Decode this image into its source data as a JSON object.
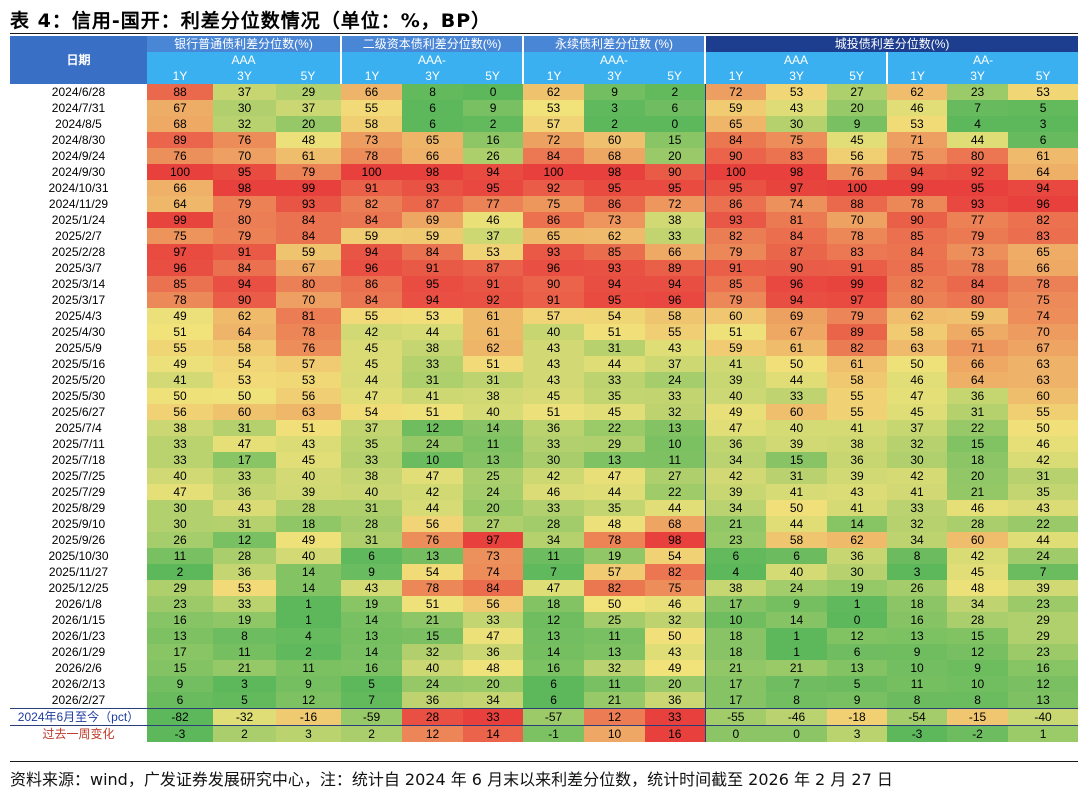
{
  "title": "表 4：信用-国开：利差分位数情况（单位：%，BP）",
  "header": {
    "date_label": "日期",
    "groups": [
      {
        "label": "银行普通债利差分位数(%)",
        "sub": [
          {
            "label": "AAA",
            "tenors": [
              "1Y",
              "3Y",
              "5Y"
            ]
          }
        ]
      },
      {
        "label": "二级资本债利差分位数(%)",
        "sub": [
          {
            "label": "AAA-",
            "tenors": [
              "1Y",
              "3Y",
              "5Y"
            ]
          }
        ]
      },
      {
        "label": "永续债利差分位数 (%)",
        "sub": [
          {
            "label": "AAA-",
            "tenors": [
              "1Y",
              "3Y",
              "5Y"
            ]
          }
        ]
      },
      {
        "label": "城投债利差分位数(%)",
        "sub": [
          {
            "label": "AAA",
            "tenors": [
              "1Y",
              "3Y",
              "5Y"
            ]
          },
          {
            "label": "AA-",
            "tenors": [
              "1Y",
              "3Y",
              "5Y"
            ]
          }
        ]
      }
    ]
  },
  "rows": [
    {
      "date": "2024/6/28",
      "v": [
        88,
        37,
        29,
        66,
        8,
        0,
        62,
        9,
        2,
        72,
        53,
        27,
        62,
        23,
        53
      ]
    },
    {
      "date": "2024/7/31",
      "v": [
        67,
        30,
        37,
        55,
        6,
        9,
        53,
        3,
        6,
        59,
        43,
        20,
        46,
        7,
        5
      ]
    },
    {
      "date": "2024/8/5",
      "v": [
        68,
        32,
        20,
        58,
        6,
        2,
        57,
        2,
        0,
        65,
        30,
        9,
        53,
        4,
        3
      ]
    },
    {
      "date": "2024/8/30",
      "v": [
        89,
        76,
        48,
        73,
        65,
        16,
        72,
        60,
        15,
        84,
        75,
        45,
        71,
        44,
        6
      ]
    },
    {
      "date": "2024/9/24",
      "v": [
        76,
        70,
        61,
        78,
        66,
        26,
        84,
        68,
        20,
        90,
        83,
        56,
        75,
        80,
        61
      ]
    },
    {
      "date": "2024/9/30",
      "v": [
        100,
        95,
        79,
        100,
        98,
        94,
        100,
        98,
        90,
        100,
        98,
        76,
        94,
        92,
        64
      ]
    },
    {
      "date": "2024/10/31",
      "v": [
        66,
        98,
        99,
        91,
        93,
        95,
        92,
        95,
        95,
        95,
        97,
        100,
        99,
        95,
        94
      ]
    },
    {
      "date": "2024/11/29",
      "v": [
        64,
        79,
        93,
        82,
        87,
        77,
        75,
        86,
        72,
        86,
        74,
        88,
        78,
        93,
        96
      ]
    },
    {
      "date": "2025/1/24",
      "v": [
        99,
        80,
        84,
        84,
        69,
        46,
        86,
        73,
        38,
        93,
        81,
        70,
        90,
        77,
        82
      ]
    },
    {
      "date": "2025/2/7",
      "v": [
        75,
        79,
        84,
        59,
        59,
        37,
        65,
        62,
        33,
        82,
        84,
        78,
        85,
        79,
        83
      ]
    },
    {
      "date": "2025/2/28",
      "v": [
        97,
        91,
        59,
        94,
        84,
        53,
        93,
        85,
        66,
        79,
        87,
        83,
        84,
        73,
        65
      ]
    },
    {
      "date": "2025/3/7",
      "v": [
        96,
        84,
        67,
        96,
        91,
        87,
        96,
        93,
        89,
        91,
        90,
        91,
        85,
        78,
        66
      ]
    },
    {
      "date": "2025/3/14",
      "v": [
        85,
        94,
        80,
        86,
        95,
        91,
        90,
        94,
        94,
        85,
        96,
        99,
        82,
        84,
        78
      ]
    },
    {
      "date": "2025/3/17",
      "v": [
        78,
        90,
        70,
        84,
        94,
        92,
        91,
        95,
        96,
        79,
        94,
        97,
        80,
        80,
        75
      ]
    },
    {
      "date": "2025/4/3",
      "v": [
        49,
        62,
        81,
        55,
        53,
        61,
        57,
        54,
        58,
        60,
        69,
        79,
        62,
        59,
        74
      ]
    },
    {
      "date": "2025/4/30",
      "v": [
        51,
        64,
        78,
        42,
        44,
        61,
        40,
        51,
        55,
        51,
        67,
        89,
        58,
        65,
        70
      ]
    },
    {
      "date": "2025/5/9",
      "v": [
        55,
        58,
        76,
        45,
        38,
        62,
        43,
        31,
        43,
        59,
        61,
        82,
        63,
        71,
        67
      ]
    },
    {
      "date": "2025/5/16",
      "v": [
        49,
        54,
        57,
        45,
        33,
        51,
        43,
        44,
        37,
        41,
        50,
        61,
        50,
        66,
        63
      ]
    },
    {
      "date": "2025/5/20",
      "v": [
        41,
        53,
        53,
        44,
        31,
        31,
        43,
        33,
        24,
        39,
        44,
        58,
        46,
        64,
        63
      ]
    },
    {
      "date": "2025/5/30",
      "v": [
        50,
        50,
        56,
        47,
        41,
        38,
        45,
        35,
        33,
        40,
        33,
        55,
        47,
        36,
        60
      ]
    },
    {
      "date": "2025/6/27",
      "v": [
        56,
        60,
        63,
        54,
        51,
        40,
        51,
        45,
        32,
        49,
        60,
        55,
        45,
        31,
        55
      ]
    },
    {
      "date": "2025/7/4",
      "v": [
        38,
        31,
        51,
        37,
        12,
        14,
        36,
        22,
        13,
        47,
        40,
        41,
        37,
        22,
        50
      ]
    },
    {
      "date": "2025/7/11",
      "v": [
        33,
        47,
        43,
        35,
        24,
        11,
        33,
        29,
        10,
        36,
        39,
        38,
        32,
        15,
        46
      ]
    },
    {
      "date": "2025/7/18",
      "v": [
        33,
        17,
        45,
        33,
        10,
        13,
        30,
        13,
        11,
        34,
        15,
        36,
        30,
        18,
        42
      ]
    },
    {
      "date": "2025/7/25",
      "v": [
        40,
        33,
        40,
        38,
        47,
        25,
        42,
        47,
        27,
        42,
        31,
        39,
        42,
        20,
        31
      ]
    },
    {
      "date": "2025/7/29",
      "v": [
        47,
        36,
        39,
        40,
        42,
        24,
        46,
        44,
        22,
        39,
        41,
        43,
        41,
        21,
        35
      ]
    },
    {
      "date": "2025/8/29",
      "v": [
        30,
        43,
        28,
        31,
        44,
        20,
        33,
        35,
        44,
        34,
        50,
        41,
        33,
        46,
        43
      ]
    },
    {
      "date": "2025/9/10",
      "v": [
        30,
        31,
        18,
        28,
        56,
        27,
        28,
        48,
        68,
        21,
        44,
        14,
        32,
        28,
        22
      ]
    },
    {
      "date": "2025/9/26",
      "v": [
        26,
        12,
        49,
        31,
        76,
        97,
        34,
        78,
        98,
        23,
        58,
        62,
        34,
        60,
        44
      ]
    },
    {
      "date": "2025/10/30",
      "v": [
        11,
        28,
        40,
        6,
        13,
        73,
        11,
        19,
        54,
        6,
        6,
        36,
        8,
        42,
        24
      ]
    },
    {
      "date": "2025/11/27",
      "v": [
        2,
        36,
        14,
        9,
        54,
        74,
        7,
        57,
        82,
        4,
        40,
        30,
        3,
        45,
        7
      ]
    },
    {
      "date": "2025/12/25",
      "v": [
        29,
        53,
        14,
        43,
        78,
        84,
        47,
        82,
        75,
        38,
        24,
        19,
        26,
        48,
        39
      ]
    },
    {
      "date": "2026/1/8",
      "v": [
        23,
        33,
        1,
        19,
        51,
        56,
        18,
        50,
        46,
        17,
        9,
        1,
        18,
        34,
        23
      ]
    },
    {
      "date": "2026/1/15",
      "v": [
        16,
        19,
        1,
        14,
        21,
        33,
        12,
        25,
        32,
        10,
        14,
        0,
        16,
        28,
        29
      ]
    },
    {
      "date": "2026/1/23",
      "v": [
        13,
        8,
        4,
        13,
        15,
        47,
        13,
        11,
        50,
        18,
        1,
        12,
        13,
        15,
        29
      ]
    },
    {
      "date": "2026/1/29",
      "v": [
        17,
        11,
        2,
        14,
        32,
        36,
        14,
        13,
        43,
        18,
        1,
        6,
        9,
        12,
        23
      ]
    },
    {
      "date": "2026/2/6",
      "v": [
        15,
        21,
        11,
        16,
        40,
        48,
        16,
        32,
        49,
        21,
        21,
        13,
        10,
        9,
        16
      ]
    },
    {
      "date": "2026/2/13",
      "v": [
        9,
        3,
        9,
        5,
        24,
        20,
        6,
        11,
        20,
        17,
        7,
        5,
        11,
        10,
        12
      ]
    },
    {
      "date": "2026/2/27",
      "v": [
        6,
        5,
        12,
        7,
        36,
        34,
        6,
        21,
        36,
        17,
        8,
        9,
        8,
        8,
        13
      ]
    }
  ],
  "stats": [
    {
      "label": "2024年6月至今（pct）",
      "v": [
        -82,
        -32,
        -16,
        -59,
        28,
        33,
        -57,
        12,
        33,
        -55,
        -46,
        -18,
        -54,
        -15,
        -40
      ]
    },
    {
      "label": "过去一周变化",
      "v": [
        -3,
        2,
        3,
        2,
        12,
        14,
        -1,
        10,
        16,
        0,
        0,
        3,
        -3,
        -2,
        1
      ]
    }
  ],
  "footer": "资料来源：wind，广发证券发展研究中心，注：统计自 2024 年 6 月末以来利差分位数，统计时间截至 2026 年 2 月 27 日",
  "colors": {
    "low": "#5db85c",
    "mid": "#f1e27a",
    "high": "#e8413d",
    "header_blue": "#4a86d6",
    "header_cyan": "#3ab0f0"
  }
}
